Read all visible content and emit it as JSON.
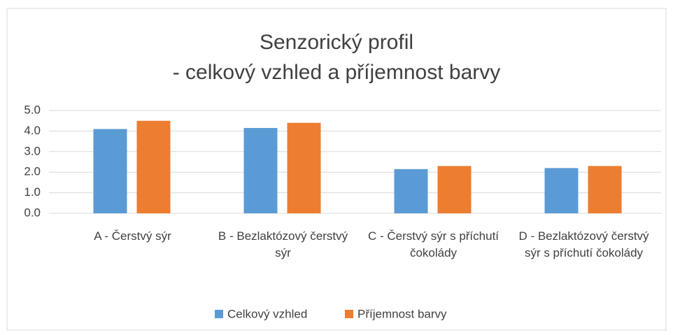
{
  "chart_data": {
    "type": "bar",
    "title": [
      "Senzorický profil",
      "- celkový vzhled a příjemnost barvy"
    ],
    "categories": [
      "A - Čerstvý sýr",
      "B - Bezlaktózový čerstvý sýr",
      "C - Čerstvý sýr s příchutí čokolády",
      "D - Bezlaktózový čerstvý sýr s příchutí čokolády"
    ],
    "series": [
      {
        "name": "Celkový vzhled",
        "color": "#5b9bd5",
        "values": [
          4.1,
          4.15,
          2.15,
          2.2
        ]
      },
      {
        "name": "Příjemnost barvy",
        "color": "#ed7d31",
        "values": [
          4.5,
          4.4,
          2.3,
          2.3
        ]
      }
    ],
    "ylim": [
      0,
      5
    ],
    "yticks": [
      {
        "value": 0,
        "label": "0.0"
      },
      {
        "value": 1,
        "label": "1.0"
      },
      {
        "value": 2,
        "label": "2.0"
      },
      {
        "value": 3,
        "label": "3.0"
      },
      {
        "value": 4,
        "label": "4.0"
      },
      {
        "value": 5,
        "label": "5.0"
      }
    ],
    "grid": true,
    "legend": "bottom"
  }
}
